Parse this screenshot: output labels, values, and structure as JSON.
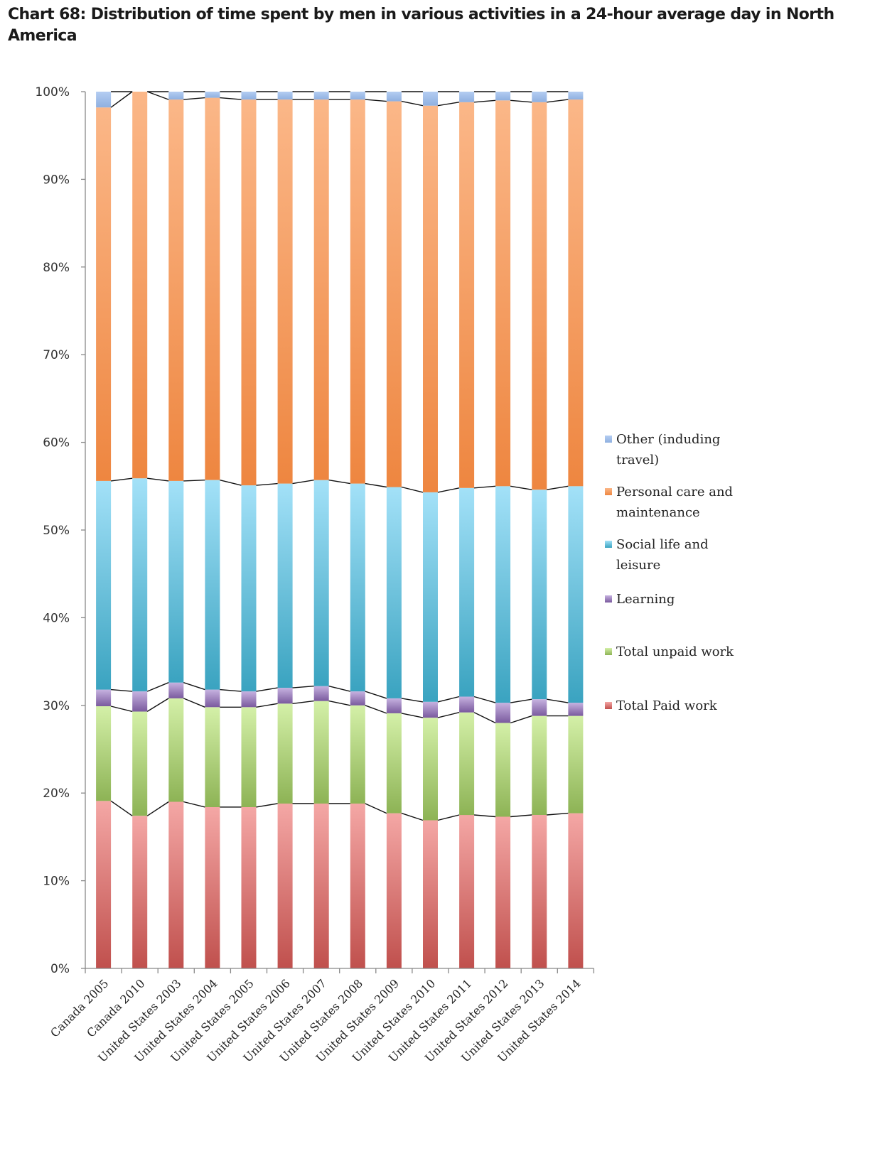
{
  "chart_data": {
    "type": "bar",
    "stacked": "percent",
    "title": "Chart 68: Distribution of time spent by men in various activities in a 24-hour average day in North America",
    "xlabel": "",
    "ylabel": "",
    "ylim": [
      0,
      100
    ],
    "yticks": [
      "0%",
      "10%",
      "20%",
      "30%",
      "40%",
      "50%",
      "60%",
      "70%",
      "80%",
      "90%",
      "100%"
    ],
    "grid": false,
    "series_lines": true,
    "legend_position": "right",
    "categories": [
      "Canada 2005",
      "Canada 2010",
      "United States 2003",
      "United States 2004",
      "United States 2005",
      "United States 2006",
      "United States 2007",
      "United States 2008",
      "United States 2009",
      "United States 2010",
      "United States 2011",
      "United States 2012",
      "United States 2013",
      "United States 2014"
    ],
    "series": [
      {
        "name": "Total Paid work",
        "color": "#c0504d",
        "color_light": "#f4a7a5",
        "values": [
          19.1,
          17.4,
          19.0,
          18.4,
          18.4,
          18.8,
          18.8,
          18.8,
          17.7,
          16.9,
          17.5,
          17.3,
          17.5,
          17.7
        ]
      },
      {
        "name": "Total unpaid work",
        "color": "#8db355",
        "color_light": "#d4f0a8",
        "values": [
          10.8,
          11.9,
          11.8,
          11.4,
          11.4,
          11.4,
          11.7,
          11.2,
          11.4,
          11.7,
          11.7,
          10.7,
          11.3,
          11.1
        ]
      },
      {
        "name": "Learning",
        "color": "#7a5a9e",
        "color_light": "#c6b2e0",
        "values": [
          1.9,
          2.3,
          1.8,
          2.0,
          1.8,
          1.8,
          1.7,
          1.6,
          1.7,
          1.8,
          1.8,
          2.3,
          1.9,
          1.5
        ]
      },
      {
        "name": "Social life and leisure",
        "color": "#3aa3c0",
        "color_light": "#a3e1f8",
        "values": [
          23.8,
          24.3,
          23.0,
          23.9,
          23.5,
          23.3,
          23.5,
          23.7,
          24.1,
          23.9,
          23.8,
          24.7,
          23.9,
          24.7
        ]
      },
      {
        "name": "Personal care and maintenance",
        "color": "#ee8640",
        "color_light": "#fbb788",
        "values": [
          42.6,
          44.1,
          43.5,
          43.6,
          44.0,
          43.8,
          43.4,
          43.8,
          44.0,
          44.1,
          44.0,
          44.0,
          44.2,
          44.1
        ]
      },
      {
        "name": "Other (induding travel)",
        "color": "#8fb0e0",
        "color_light": "#b4cdf2",
        "values": [
          1.8,
          0.0,
          0.9,
          0.7,
          0.9,
          0.9,
          0.9,
          0.9,
          1.1,
          1.6,
          1.2,
          1.0,
          1.2,
          0.9
        ]
      }
    ],
    "legend": [
      "Other (induding travel)",
      "Personal care and maintenance",
      "Social life and leisure",
      "Learning",
      "Total unpaid work",
      "Total Paid work"
    ]
  }
}
